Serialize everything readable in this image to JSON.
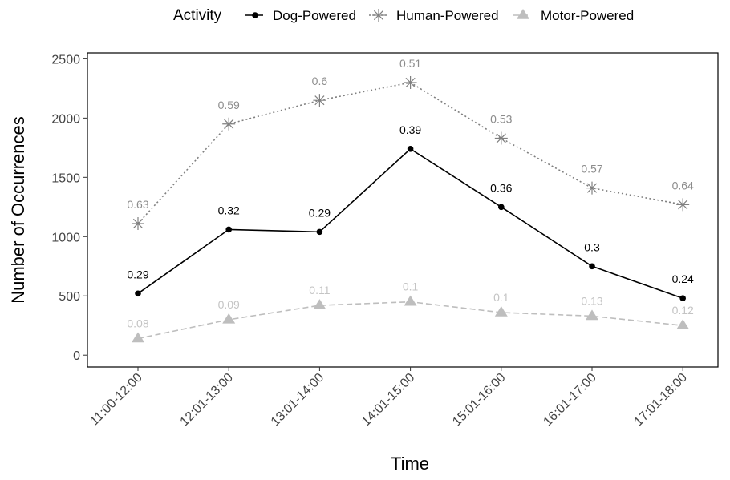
{
  "chart_data": {
    "type": "line",
    "legend_title": "Activity",
    "legend_position": "top",
    "categories": [
      "11:00-12:00",
      "12:01-13:00",
      "13:01-14:00",
      "14:01-15:00",
      "15:01-16:00",
      "16:01-17:00",
      "17:01-18:00"
    ],
    "xlabel": "Time",
    "ylabel": "Number of Occurrences",
    "ylim": [
      -100,
      2550
    ],
    "yticks": [
      0,
      500,
      1000,
      1500,
      2000,
      2500
    ],
    "grid": false,
    "series": [
      {
        "name": "Dog-Powered",
        "marker": "circle",
        "line_style": "solid",
        "color": "#000000",
        "label_color": "#000000",
        "values": [
          520,
          1060,
          1040,
          1740,
          1250,
          750,
          480
        ],
        "labels": [
          "0.29",
          "0.32",
          "0.29",
          "0.39",
          "0.36",
          "0.3",
          "0.24"
        ]
      },
      {
        "name": "Human-Powered",
        "marker": "asterisk",
        "line_style": "dotted",
        "color": "#808080",
        "label_color": "#8c8c8c",
        "values": [
          1110,
          1950,
          2150,
          2300,
          1830,
          1410,
          1270
        ],
        "labels": [
          "0.63",
          "0.59",
          "0.6",
          "0.51",
          "0.53",
          "0.57",
          "0.64"
        ]
      },
      {
        "name": "Motor-Powered",
        "marker": "triangle",
        "line_style": "dashed",
        "color": "#bebebe",
        "label_color": "#c4c4c4",
        "values": [
          140,
          300,
          420,
          450,
          360,
          330,
          250
        ],
        "labels": [
          "0.08",
          "0.09",
          "0.11",
          "0.1",
          "0.1",
          "0.13",
          "0.12"
        ]
      }
    ]
  }
}
